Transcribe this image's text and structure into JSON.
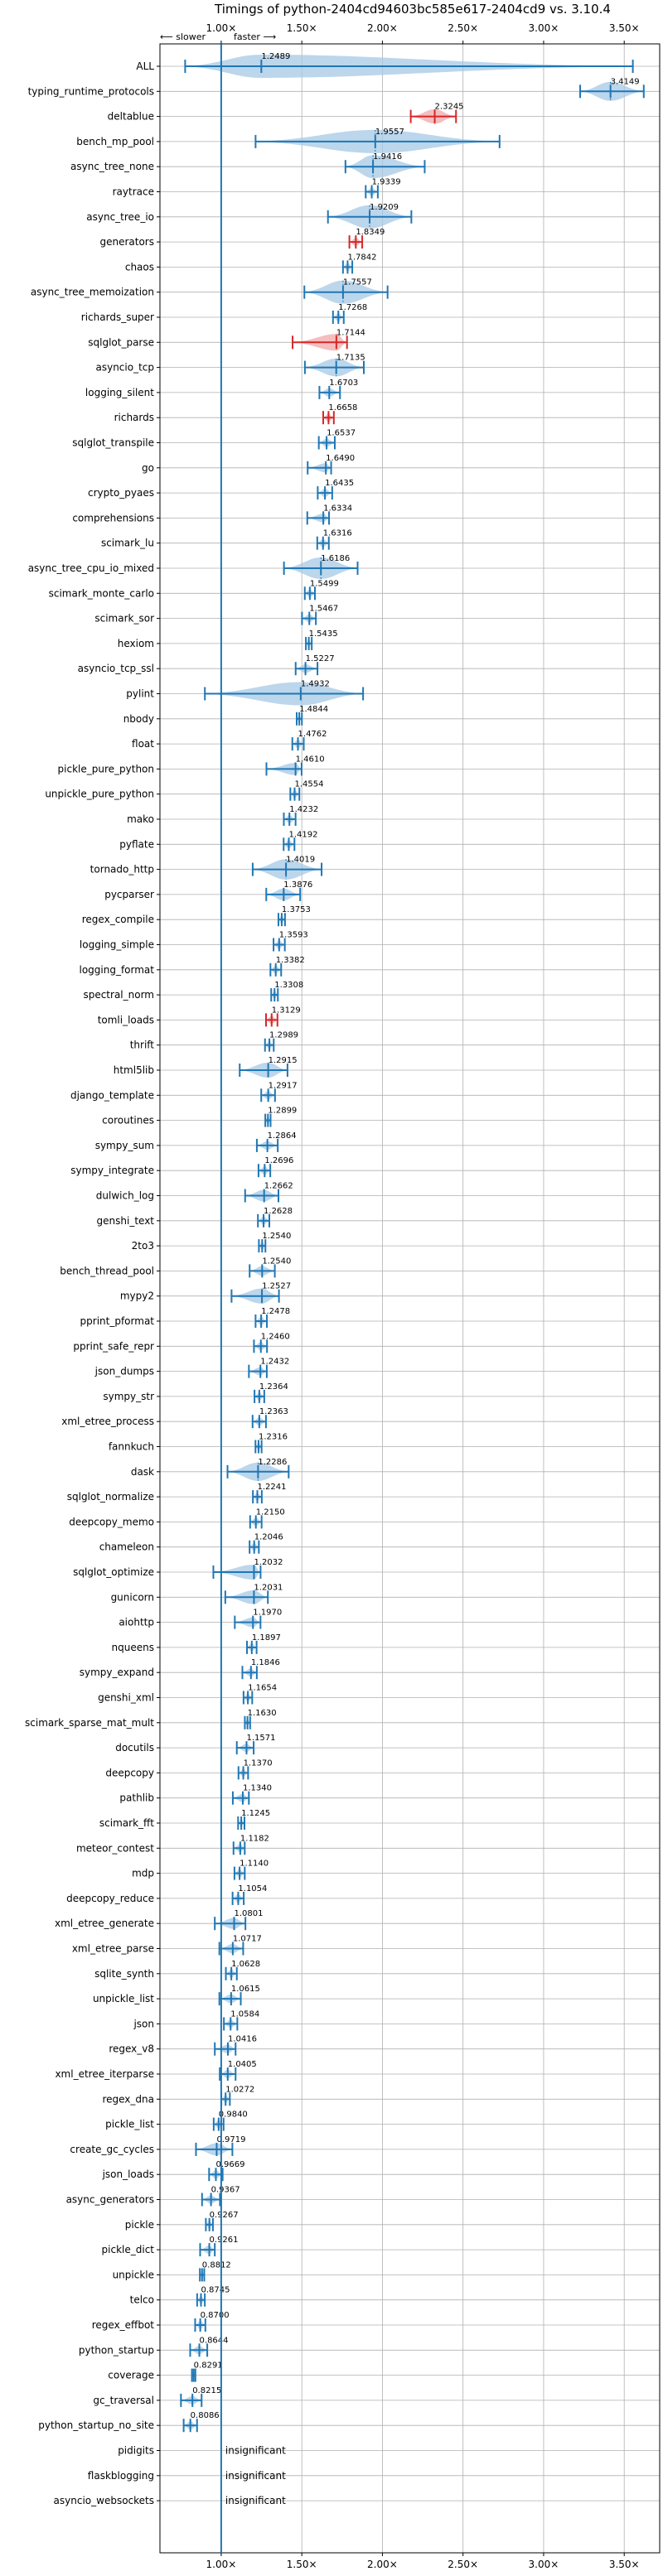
{
  "chart_data": {
    "type": "violin",
    "title": "Timings of python-2404cd94603bc585e617-2404cd9 vs. 3.10.4",
    "direction_left": "⟵ slower",
    "direction_right": "faster ⟶",
    "xlim": [
      0.62,
      3.72
    ],
    "xticks": [
      1.0,
      1.5,
      2.0,
      2.5,
      3.0,
      3.5
    ],
    "xtick_labels": [
      "1.00×",
      "1.50×",
      "2.00×",
      "2.50×",
      "3.00×",
      "3.50×"
    ],
    "grid": true,
    "reference_line": 1.0,
    "insignificant_label": "insignificant",
    "colors": {
      "violin_fill": "#a6c8e6",
      "violin_edge": "#1f77b4",
      "regression_fill": "#f0a8a8",
      "regression_edge": "#d62728",
      "grid": "#b0b0b0",
      "ink": "#000000"
    },
    "benchmarks": [
      {
        "name": "ALL",
        "mean": 1.2489,
        "min": 0.7763,
        "max": 3.5535,
        "med": 1.0,
        "status": "faster"
      },
      {
        "name": "typing_runtime_protocols",
        "mean": 3.4149,
        "min": 3.2267,
        "max": 3.6212,
        "med": 3.4149,
        "status": "faster"
      },
      {
        "name": "deltablue",
        "mean": 2.3245,
        "min": 2.1758,
        "max": 2.4566,
        "med": 2.3245,
        "status": "regression"
      },
      {
        "name": "bench_mp_pool",
        "mean": 1.9557,
        "min": 1.2132,
        "max": 2.7268,
        "med": 1.9557,
        "status": "faster"
      },
      {
        "name": "async_tree_none",
        "mean": 1.9416,
        "min": 1.7707,
        "max": 2.2623,
        "med": 1.9416,
        "status": "faster"
      },
      {
        "name": "raytrace",
        "mean": 1.9339,
        "min": 1.8964,
        "max": 1.9714,
        "med": 1.9339,
        "status": "faster"
      },
      {
        "name": "async_tree_io",
        "mean": 1.9209,
        "min": 1.6622,
        "max": 2.1796,
        "med": 1.9209,
        "status": "faster"
      },
      {
        "name": "generators",
        "mean": 1.8349,
        "min": 1.7951,
        "max": 1.8747,
        "med": 1.8349,
        "status": "regression"
      },
      {
        "name": "chaos",
        "mean": 1.7842,
        "min": 1.7554,
        "max": 1.8131,
        "med": 1.7842,
        "status": "faster"
      },
      {
        "name": "async_tree_memoization",
        "mean": 1.7557,
        "min": 1.5159,
        "max": 2.0321,
        "med": 1.7557,
        "status": "faster"
      },
      {
        "name": "richards_super",
        "mean": 1.7268,
        "min": 1.6935,
        "max": 1.7601,
        "med": 1.7268,
        "status": "faster"
      },
      {
        "name": "sqlglot_parse",
        "mean": 1.7144,
        "min": 1.4428,
        "max": 1.7804,
        "med": 1.7144,
        "status": "regression"
      },
      {
        "name": "asyncio_tcp",
        "mean": 1.7135,
        "min": 1.5192,
        "max": 1.8846,
        "med": 1.7135,
        "status": "faster"
      },
      {
        "name": "logging_silent",
        "mean": 1.6703,
        "min": 1.6093,
        "max": 1.7369,
        "med": 1.6703,
        "status": "faster"
      },
      {
        "name": "richards",
        "mean": 1.6658,
        "min": 1.6327,
        "max": 1.6986,
        "med": 1.6658,
        "status": "regression"
      },
      {
        "name": "sqlglot_transpile",
        "mean": 1.6537,
        "min": 1.6054,
        "max": 1.7046,
        "med": 1.6537,
        "status": "faster"
      },
      {
        "name": "go",
        "mean": 1.649,
        "min": 1.5364,
        "max": 1.6819,
        "med": 1.649,
        "status": "faster"
      },
      {
        "name": "crypto_pyaes",
        "mean": 1.6435,
        "min": 1.5988,
        "max": 1.6885,
        "med": 1.6435,
        "status": "faster"
      },
      {
        "name": "comprehensions",
        "mean": 1.6334,
        "min": 1.5339,
        "max": 1.6689,
        "med": 1.6334,
        "status": "faster"
      },
      {
        "name": "scimark_lu",
        "mean": 1.6316,
        "min": 1.5958,
        "max": 1.6675,
        "med": 1.6316,
        "status": "faster"
      },
      {
        "name": "async_tree_cpu_io_mixed",
        "mean": 1.6186,
        "min": 1.3893,
        "max": 1.8462,
        "med": 1.6186,
        "status": "faster"
      },
      {
        "name": "scimark_monte_carlo",
        "mean": 1.5499,
        "min": 1.5185,
        "max": 1.5813,
        "med": 1.5499,
        "status": "faster"
      },
      {
        "name": "scimark_sor",
        "mean": 1.5467,
        "min": 1.5012,
        "max": 1.5873,
        "med": 1.5467,
        "status": "faster"
      },
      {
        "name": "hexiom",
        "mean": 1.5435,
        "min": 1.5253,
        "max": 1.5617,
        "med": 1.5435,
        "status": "faster"
      },
      {
        "name": "asyncio_tcp_ssl",
        "mean": 1.5227,
        "min": 1.4618,
        "max": 1.5972,
        "med": 1.5227,
        "status": "faster"
      },
      {
        "name": "pylint",
        "mean": 1.4932,
        "min": 0.8987,
        "max": 1.8802,
        "med": 1.0,
        "status": "faster"
      },
      {
        "name": "nbody",
        "mean": 1.4844,
        "min": 1.4684,
        "max": 1.5004,
        "med": 1.4844,
        "status": "faster"
      },
      {
        "name": "float",
        "mean": 1.4762,
        "min": 1.4412,
        "max": 1.5119,
        "med": 1.4762,
        "status": "faster"
      },
      {
        "name": "pickle_pure_python",
        "mean": 1.461,
        "min": 1.2806,
        "max": 1.4987,
        "med": 1.461,
        "status": "faster"
      },
      {
        "name": "unpickle_pure_python",
        "mean": 1.4554,
        "min": 1.4288,
        "max": 1.4849,
        "med": 1.4554,
        "status": "faster"
      },
      {
        "name": "mako",
        "mean": 1.4232,
        "min": 1.3885,
        "max": 1.4613,
        "med": 1.4232,
        "status": "faster"
      },
      {
        "name": "pyflate",
        "mean": 1.4192,
        "min": 1.3874,
        "max": 1.4544,
        "med": 1.4192,
        "status": "faster"
      },
      {
        "name": "tornado_http",
        "mean": 1.4019,
        "min": 1.1953,
        "max": 1.6228,
        "med": 1.4019,
        "status": "faster"
      },
      {
        "name": "pycparser",
        "mean": 1.3876,
        "min": 1.2795,
        "max": 1.4897,
        "med": 1.3876,
        "status": "faster"
      },
      {
        "name": "regex_compile",
        "mean": 1.3753,
        "min": 1.3549,
        "max": 1.3957,
        "med": 1.3753,
        "status": "faster"
      },
      {
        "name": "logging_simple",
        "mean": 1.3593,
        "min": 1.3247,
        "max": 1.3946,
        "med": 1.3593,
        "status": "faster"
      },
      {
        "name": "logging_format",
        "mean": 1.3382,
        "min": 1.3054,
        "max": 1.3719,
        "med": 1.3382,
        "status": "faster"
      },
      {
        "name": "spectral_norm",
        "mean": 1.3308,
        "min": 1.3102,
        "max": 1.3514,
        "med": 1.3308,
        "status": "faster"
      },
      {
        "name": "tomli_loads",
        "mean": 1.3129,
        "min": 1.2781,
        "max": 1.3488,
        "med": 1.3129,
        "status": "regression"
      },
      {
        "name": "thrift",
        "mean": 1.2989,
        "min": 1.2717,
        "max": 1.3257,
        "med": 1.2989,
        "status": "faster"
      },
      {
        "name": "html5lib",
        "mean": 1.2915,
        "min": 1.1148,
        "max": 1.4112,
        "med": 1.2915,
        "status": "faster"
      },
      {
        "name": "django_template",
        "mean": 1.2917,
        "min": 1.2483,
        "max": 1.3337,
        "med": 1.2917,
        "status": "faster"
      },
      {
        "name": "coroutines",
        "mean": 1.2899,
        "min": 1.2735,
        "max": 1.3063,
        "med": 1.2899,
        "status": "faster"
      },
      {
        "name": "sympy_sum",
        "mean": 1.2864,
        "min": 1.2211,
        "max": 1.3507,
        "med": 1.2864,
        "status": "faster"
      },
      {
        "name": "sympy_integrate",
        "mean": 1.2696,
        "min": 1.2314,
        "max": 1.3044,
        "med": 1.2696,
        "status": "faster"
      },
      {
        "name": "dulwich_log",
        "mean": 1.2662,
        "min": 1.1483,
        "max": 1.3551,
        "med": 1.2662,
        "status": "faster"
      },
      {
        "name": "genshi_text",
        "mean": 1.2628,
        "min": 1.2277,
        "max": 1.2985,
        "med": 1.2628,
        "status": "faster"
      },
      {
        "name": "2to3",
        "mean": 1.254,
        "min": 1.2338,
        "max": 1.2742,
        "med": 1.254,
        "status": "faster"
      },
      {
        "name": "bench_thread_pool",
        "mean": 1.254,
        "min": 1.1764,
        "max": 1.3326,
        "med": 1.254,
        "status": "faster"
      },
      {
        "name": "mypy2",
        "mean": 1.2527,
        "min": 1.0642,
        "max": 1.3582,
        "med": 1.2527,
        "status": "faster"
      },
      {
        "name": "pprint_pformat",
        "mean": 1.2478,
        "min": 1.2132,
        "max": 1.2834,
        "med": 1.2478,
        "status": "faster"
      },
      {
        "name": "pprint_safe_repr",
        "mean": 1.246,
        "min": 1.2032,
        "max": 1.2841,
        "med": 1.246,
        "status": "faster"
      },
      {
        "name": "json_dumps",
        "mean": 1.2432,
        "min": 1.1717,
        "max": 1.2828,
        "med": 1.2432,
        "status": "faster"
      },
      {
        "name": "sympy_str",
        "mean": 1.2364,
        "min": 1.2067,
        "max": 1.2671,
        "med": 1.2364,
        "status": "faster"
      },
      {
        "name": "xml_etree_process",
        "mean": 1.2363,
        "min": 1.1946,
        "max": 1.2776,
        "med": 1.2363,
        "status": "faster"
      },
      {
        "name": "fannkuch",
        "mean": 1.2316,
        "min": 1.2126,
        "max": 1.2506,
        "med": 1.2316,
        "status": "faster"
      },
      {
        "name": "dask",
        "mean": 1.2286,
        "min": 1.0392,
        "max": 1.4185,
        "med": 1.2286,
        "status": "faster"
      },
      {
        "name": "sqlglot_normalize",
        "mean": 1.2241,
        "min": 1.1966,
        "max": 1.2517,
        "med": 1.2241,
        "status": "faster"
      },
      {
        "name": "deepcopy_memo",
        "mean": 1.215,
        "min": 1.1793,
        "max": 1.2507,
        "med": 1.215,
        "status": "faster"
      },
      {
        "name": "chameleon",
        "mean": 1.2046,
        "min": 1.1761,
        "max": 1.2335,
        "med": 1.2046,
        "status": "faster"
      },
      {
        "name": "sqlglot_optimize",
        "mean": 1.2032,
        "min": 0.9514,
        "max": 1.2442,
        "med": 1.2032,
        "status": "faster"
      },
      {
        "name": "gunicorn",
        "mean": 1.2031,
        "min": 1.0254,
        "max": 1.2894,
        "med": 1.2031,
        "status": "faster"
      },
      {
        "name": "aiohttp",
        "mean": 1.197,
        "min": 1.0844,
        "max": 1.2438,
        "med": 1.197,
        "status": "faster"
      },
      {
        "name": "nqueens",
        "mean": 1.1897,
        "min": 1.1598,
        "max": 1.2195,
        "med": 1.1897,
        "status": "faster"
      },
      {
        "name": "sympy_expand",
        "mean": 1.1846,
        "min": 1.1314,
        "max": 1.2209,
        "med": 1.1846,
        "status": "faster"
      },
      {
        "name": "genshi_xml",
        "mean": 1.1654,
        "min": 1.1386,
        "max": 1.1923,
        "med": 1.1654,
        "status": "faster"
      },
      {
        "name": "scimark_sparse_mat_mult",
        "mean": 1.163,
        "min": 1.1466,
        "max": 1.1795,
        "med": 1.163,
        "status": "faster"
      },
      {
        "name": "docutils",
        "mean": 1.1571,
        "min": 1.0968,
        "max": 1.2013,
        "med": 1.1571,
        "status": "faster"
      },
      {
        "name": "deepcopy",
        "mean": 1.137,
        "min": 1.1072,
        "max": 1.1668,
        "med": 1.137,
        "status": "faster"
      },
      {
        "name": "pathlib",
        "mean": 1.134,
        "min": 1.0721,
        "max": 1.1716,
        "med": 1.134,
        "status": "faster"
      },
      {
        "name": "scimark_fft",
        "mean": 1.1245,
        "min": 1.1048,
        "max": 1.1442,
        "med": 1.1245,
        "status": "faster"
      },
      {
        "name": "meteor_contest",
        "mean": 1.1182,
        "min": 1.0764,
        "max": 1.1459,
        "med": 1.1182,
        "status": "faster"
      },
      {
        "name": "mdp",
        "mean": 1.114,
        "min": 1.0822,
        "max": 1.1461,
        "med": 1.114,
        "status": "faster"
      },
      {
        "name": "deepcopy_reduce",
        "mean": 1.1054,
        "min": 1.0706,
        "max": 1.1397,
        "med": 1.1054,
        "status": "faster"
      },
      {
        "name": "xml_etree_generate",
        "mean": 1.0801,
        "min": 0.9602,
        "max": 1.1503,
        "med": 1.0801,
        "status": "faster"
      },
      {
        "name": "xml_etree_parse",
        "mean": 1.0717,
        "min": 0.9886,
        "max": 1.1362,
        "med": 1.0717,
        "status": "faster"
      },
      {
        "name": "sqlite_synth",
        "mean": 1.0628,
        "min": 1.0289,
        "max": 1.0968,
        "med": 1.0628,
        "status": "faster"
      },
      {
        "name": "unpickle_list",
        "mean": 1.0615,
        "min": 0.9887,
        "max": 1.1214,
        "med": 1.0615,
        "status": "faster"
      },
      {
        "name": "json",
        "mean": 1.0584,
        "min": 1.0167,
        "max": 1.0999,
        "med": 1.0584,
        "status": "faster"
      },
      {
        "name": "regex_v8",
        "mean": 1.0416,
        "min": 0.9603,
        "max": 1.0892,
        "med": 1.0416,
        "status": "faster"
      },
      {
        "name": "xml_etree_iterparse",
        "mean": 1.0405,
        "min": 0.9911,
        "max": 1.0892,
        "med": 1.0405,
        "status": "faster"
      },
      {
        "name": "regex_dna",
        "mean": 1.0272,
        "min": 1.0008,
        "max": 1.0536,
        "med": 1.0272,
        "status": "faster"
      },
      {
        "name": "pickle_list",
        "mean": 0.984,
        "min": 0.9534,
        "max": 1.0147,
        "med": 0.984,
        "status": "slower"
      },
      {
        "name": "create_gc_cycles",
        "mean": 0.9719,
        "min": 0.8435,
        "max": 1.0693,
        "med": 0.9719,
        "status": "slower"
      },
      {
        "name": "json_loads",
        "mean": 0.9669,
        "min": 0.9249,
        "max": 1.0088,
        "med": 0.9669,
        "status": "slower"
      },
      {
        "name": "async_generators",
        "mean": 0.9367,
        "min": 0.8812,
        "max": 0.9923,
        "med": 0.9367,
        "status": "slower"
      },
      {
        "name": "pickle",
        "mean": 0.9267,
        "min": 0.9048,
        "max": 0.9485,
        "med": 0.9267,
        "status": "slower"
      },
      {
        "name": "pickle_dict",
        "mean": 0.9261,
        "min": 0.8692,
        "max": 0.9601,
        "med": 0.9261,
        "status": "slower"
      },
      {
        "name": "unpickle",
        "mean": 0.8812,
        "min": 0.8676,
        "max": 0.8948,
        "med": 0.8812,
        "status": "slower"
      },
      {
        "name": "telco",
        "mean": 0.8745,
        "min": 0.8507,
        "max": 0.8983,
        "med": 0.8745,
        "status": "slower"
      },
      {
        "name": "regex_effbot",
        "mean": 0.87,
        "min": 0.8383,
        "max": 0.9017,
        "med": 0.87,
        "status": "slower"
      },
      {
        "name": "python_startup",
        "mean": 0.8644,
        "min": 0.8075,
        "max": 0.9135,
        "med": 0.8644,
        "status": "slower"
      },
      {
        "name": "coverage",
        "mean": 0.8291,
        "min": 0.8183,
        "max": 0.8399,
        "med": 0.8291,
        "status": "slower"
      },
      {
        "name": "gc_traversal",
        "mean": 0.8215,
        "min": 0.7503,
        "max": 0.8784,
        "med": 0.8215,
        "status": "slower"
      },
      {
        "name": "python_startup_no_site",
        "mean": 0.8086,
        "min": 0.7671,
        "max": 0.8501,
        "med": 0.8086,
        "status": "slower"
      },
      {
        "name": "pidigits",
        "mean": null,
        "status": "insignificant"
      },
      {
        "name": "flaskblogging",
        "mean": null,
        "status": "insignificant"
      },
      {
        "name": "asyncio_websockets",
        "mean": null,
        "status": "insignificant"
      }
    ]
  }
}
